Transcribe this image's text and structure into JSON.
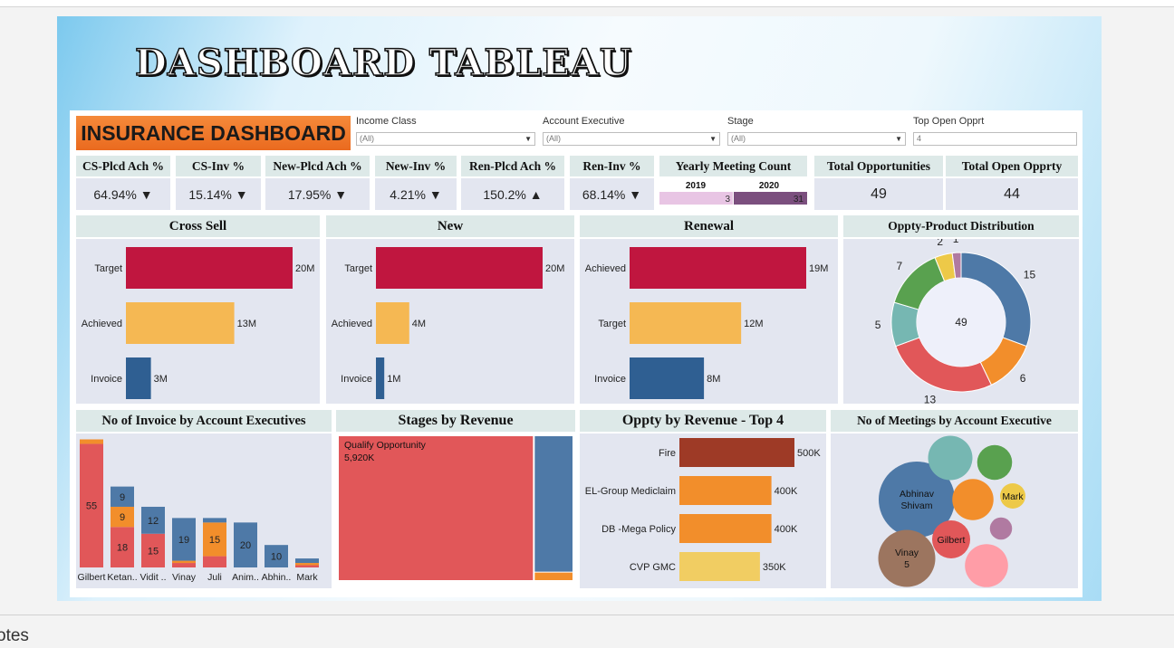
{
  "slide_title": "DASHBOARD TABLEAU",
  "banner": "INSURANCE DASHBOARD",
  "notes_label": "otes",
  "filters": [
    {
      "label": "Income Class",
      "value": "(All)"
    },
    {
      "label": "Account Executive",
      "value": "(All)"
    },
    {
      "label": "Stage",
      "value": "(All)"
    },
    {
      "label": "Top Open Opprt",
      "value": "4"
    }
  ],
  "kpis": [
    {
      "label": "CS-Plcd Ach %",
      "value": "64.94%",
      "trend": "▼"
    },
    {
      "label": "CS-Inv %",
      "value": "15.14%",
      "trend": "▼"
    },
    {
      "label": "New-Plcd Ach %",
      "value": "17.95%",
      "trend": "▼"
    },
    {
      "label": "New-Inv %",
      "value": "4.21%",
      "trend": "▼"
    },
    {
      "label": "Ren-Plcd Ach %",
      "value": "150.2%",
      "trend": "▲"
    },
    {
      "label": "Ren-Inv %",
      "value": "68.14%",
      "trend": "▼"
    }
  ],
  "yearly_meeting": {
    "label": "Yearly Meeting Count",
    "years": [
      "2019",
      "2020"
    ],
    "counts": [
      3,
      31
    ]
  },
  "totals": [
    {
      "label": "Total Opportunities",
      "value": "49"
    },
    {
      "label": "Total Open Opprty",
      "value": "44"
    }
  ],
  "colors": {
    "red": "#c0163f",
    "orange": "#f5b853",
    "blue": "#2f5f92",
    "panel": "#e3e6f0"
  },
  "chart_data": [
    {
      "type": "bar",
      "title": "Cross Sell",
      "categories": [
        "Target",
        "Achieved",
        "Invoice"
      ],
      "values": [
        20,
        13,
        3
      ],
      "labels": [
        "20M",
        "13M",
        "3M"
      ],
      "unit": "M"
    },
    {
      "type": "bar",
      "title": "New",
      "categories": [
        "Target",
        "Achieved",
        "Invoice"
      ],
      "values": [
        20,
        4,
        1
      ],
      "labels": [
        "20M",
        "4M",
        "1M"
      ],
      "unit": "M"
    },
    {
      "type": "bar",
      "title": "Renewal",
      "categories": [
        "Achieved",
        "Target",
        "Invoice"
      ],
      "values": [
        19,
        12,
        8
      ],
      "labels": [
        "19M",
        "12M",
        "8M"
      ],
      "unit": "M"
    },
    {
      "type": "pie",
      "title": "Oppty-Product Distribution",
      "center_label": "49",
      "slices": [
        {
          "value": 15,
          "color": "#4e79a7"
        },
        {
          "value": 6,
          "color": "#f28e2b"
        },
        {
          "value": 13,
          "color": "#e15759"
        },
        {
          "value": 5,
          "color": "#76b7b2"
        },
        {
          "value": 7,
          "color": "#59a14f"
        },
        {
          "value": 2,
          "color": "#edc948"
        },
        {
          "value": 1,
          "color": "#b07aa1"
        }
      ]
    },
    {
      "type": "bar",
      "title": "No of Invoice by Account Executives",
      "categories": [
        "Gilbert",
        "Ketan..",
        "Vidit ..",
        "Vinay",
        "Juli",
        "Anim..",
        "Abhin..",
        "Mark"
      ],
      "series": [
        {
          "name": "red",
          "color": "#e15759",
          "values": [
            55,
            18,
            15,
            2,
            5,
            0,
            0,
            1
          ]
        },
        {
          "name": "orange",
          "color": "#f28e2b",
          "values": [
            2,
            9,
            0,
            1,
            15,
            0,
            0,
            1
          ]
        },
        {
          "name": "blue",
          "color": "#4e79a7",
          "values": [
            0,
            9,
            12,
            19,
            2,
            20,
            10,
            2
          ]
        }
      ],
      "ylim": [
        0,
        58
      ]
    },
    {
      "type": "heatmap",
      "title": "Stages by Revenue",
      "cells": [
        {
          "label": "Qualify Opportunity",
          "value": 5920,
          "value_label": "5,920K",
          "color": "#e15759"
        },
        {
          "label": "",
          "value": 1080,
          "value_label": "",
          "color": "#4e79a7"
        },
        {
          "label": "",
          "value": 60,
          "value_label": "",
          "color": "#f28e2b"
        }
      ]
    },
    {
      "type": "bar",
      "title": "Oppty by Revenue - Top 4",
      "categories": [
        "Fire",
        "EL-Group Mediclaim",
        "DB -Mega Policy",
        "CVP GMC"
      ],
      "values": [
        500,
        400,
        400,
        350
      ],
      "labels": [
        "500K",
        "400K",
        "400K",
        "350K"
      ],
      "colors": [
        "#9e3a26",
        "#f28e2b",
        "#f28e2b",
        "#f1cd62"
      ]
    },
    {
      "type": "scatter",
      "title": "No of Meetings by Account Executive",
      "bubbles": [
        {
          "name": "Abhinav Shivam",
          "line1": "Abhinav",
          "line2": "Shivam",
          "value": 12,
          "color": "#4e79a7"
        },
        {
          "name": "Vinay",
          "line1": "Vinay",
          "line2": "5",
          "value": 9,
          "color": "#9c755f"
        },
        {
          "name": "Gilbert",
          "line1": "Gilbert",
          "line2": "",
          "value": 6,
          "color": "#e15759"
        },
        {
          "name": "Mark",
          "line1": "Mark",
          "line2": "",
          "value": 4,
          "color": "#edc948"
        },
        {
          "name": "",
          "line1": "",
          "line2": "",
          "value": 7,
          "color": "#76b7b2"
        },
        {
          "name": "",
          "line1": "",
          "line2": "",
          "value": 6.5,
          "color": "#f28e2b"
        },
        {
          "name": "",
          "line1": "",
          "line2": "",
          "value": 5.5,
          "color": "#59a14f"
        },
        {
          "name": "",
          "line1": "",
          "line2": "",
          "value": 3.5,
          "color": "#b07aa1"
        },
        {
          "name": "",
          "line1": "",
          "line2": "",
          "value": 6.8,
          "color": "#ff9da7"
        }
      ]
    }
  ]
}
